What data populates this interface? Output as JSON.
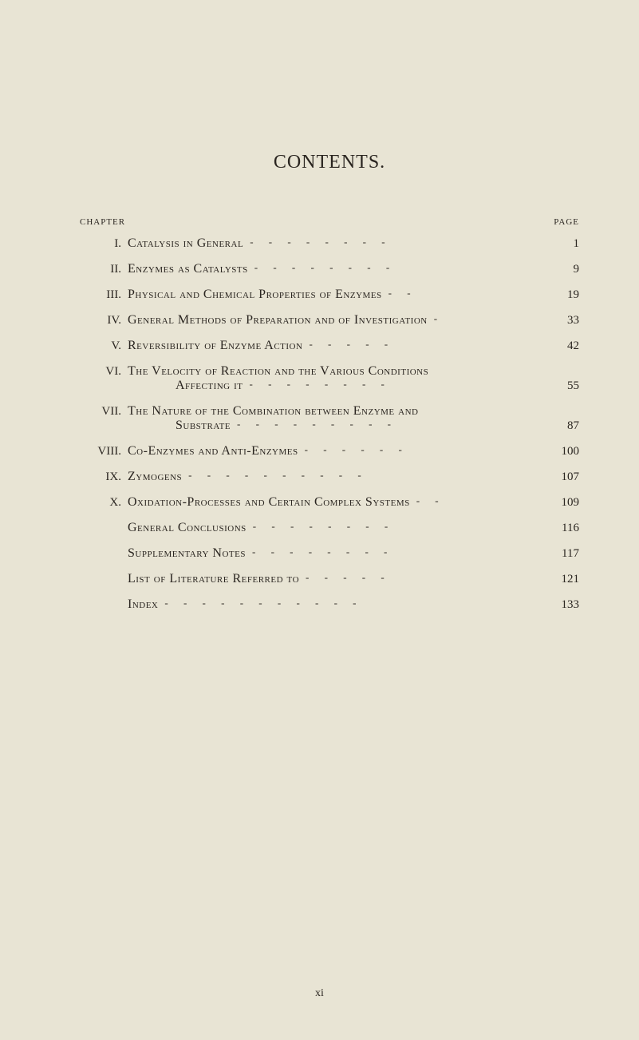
{
  "title": "CONTENTS.",
  "header": {
    "chapter": "CHAPTER",
    "page": "PAGE"
  },
  "entries": [
    {
      "roman": "I.",
      "text": "Catalysis in General",
      "leader": "-     -     -     -     -     -     -     -",
      "page": "1"
    },
    {
      "roman": "II.",
      "text": "Enzymes as Catalysts",
      "leader": "-     -     -     -     -     -     -     -",
      "page": "9"
    },
    {
      "roman": "III.",
      "text": "Physical and Chemical Properties of Enzymes",
      "leader": "-     -",
      "page": "19"
    },
    {
      "roman": "IV.",
      "text": "General Methods of Preparation and of Investigation",
      "leader": "-",
      "page": "33"
    },
    {
      "roman": "V.",
      "text": "Reversibility of Enzyme Action",
      "leader": "-     -     -     -     -",
      "page": "42"
    },
    {
      "roman": "VI.",
      "line1": "The Velocity of Reaction and the Various Conditions",
      "line2": "Affecting it",
      "leader": "-     -     -     -     -     -     -     -",
      "page": "55"
    },
    {
      "roman": "VII.",
      "line1": "The Nature of the Combination between Enzyme and",
      "line2": "Substrate",
      "leader": "-     -     -     -     -     -     -     -     -",
      "page": "87"
    },
    {
      "roman": "VIII.",
      "text": "Co-Enzymes and Anti-Enzymes",
      "leader": "-     -     -     -     -     -",
      "page": "100"
    },
    {
      "roman": "IX.",
      "text": "Zymogens",
      "leader": "-     -     -     -     -     -     -     -     -     -",
      "page": "107"
    },
    {
      "roman": "X.",
      "text": "Oxidation-Processes and Certain Complex Systems",
      "leader": "-     -",
      "page": "109"
    },
    {
      "roman": "",
      "text": "General Conclusions",
      "leader": "-     -     -     -     -     -     -     -",
      "page": "116"
    },
    {
      "roman": "",
      "text": "Supplementary Notes",
      "leader": "-     -     -     -     -     -     -     -",
      "page": "117"
    },
    {
      "roman": "",
      "text": "List of Literature Referred to",
      "leader": "-     -     -     -     -",
      "page": "121"
    },
    {
      "roman": "",
      "text": "Index",
      "leader": "-     -     -     -     -     -     -     -     -     -     -",
      "page": "133"
    }
  ],
  "footer": "xi",
  "colors": {
    "background": "#e8e4d4",
    "text": "#2a2520"
  }
}
